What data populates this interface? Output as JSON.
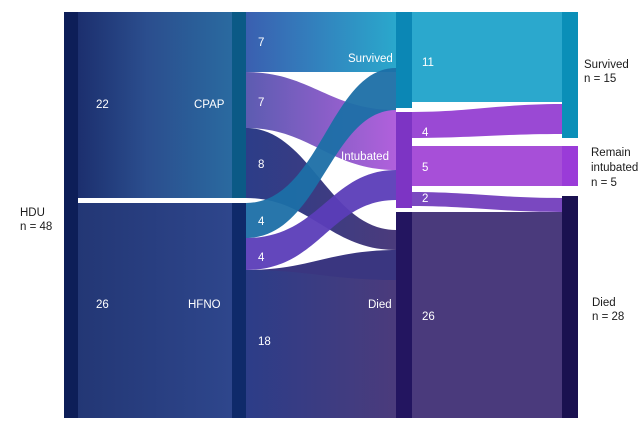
{
  "colors": {
    "hdu_node": "#0d1e58",
    "resp_node": "#0a4d78",
    "mid_node": "#3a2270",
    "final_survived": "#0a8fb8",
    "final_remain": "#9a3bd8",
    "final_died": "#1a1150",
    "survived_band": "#2eaace",
    "intubated_band": "#a44fd8",
    "died_band": "#4a3a7a",
    "cpap_band": "#1e6a98",
    "hfno_band": "#2a3a86"
  },
  "source": {
    "label": "HDU",
    "count": "n = 48"
  },
  "respiratory": [
    {
      "name": "CPAP",
      "count": "22"
    },
    {
      "name": "HFNO",
      "count": "26"
    }
  ],
  "transition_counts": [
    "7",
    "7",
    "8",
    "4",
    "4",
    "18"
  ],
  "intermediate": [
    {
      "name": "Survived",
      "count": "11"
    },
    {
      "name": "Intubated",
      "count": ""
    },
    {
      "name": "Died",
      "count": "26"
    }
  ],
  "intubated_split": [
    "4",
    "5",
    "2"
  ],
  "final": [
    {
      "name": "Survived",
      "count": "n = 15"
    },
    {
      "name_line1": "Remain",
      "name_line2": "intubated",
      "count": "n = 5"
    },
    {
      "name": "Died",
      "count": "n = 28"
    }
  ]
}
